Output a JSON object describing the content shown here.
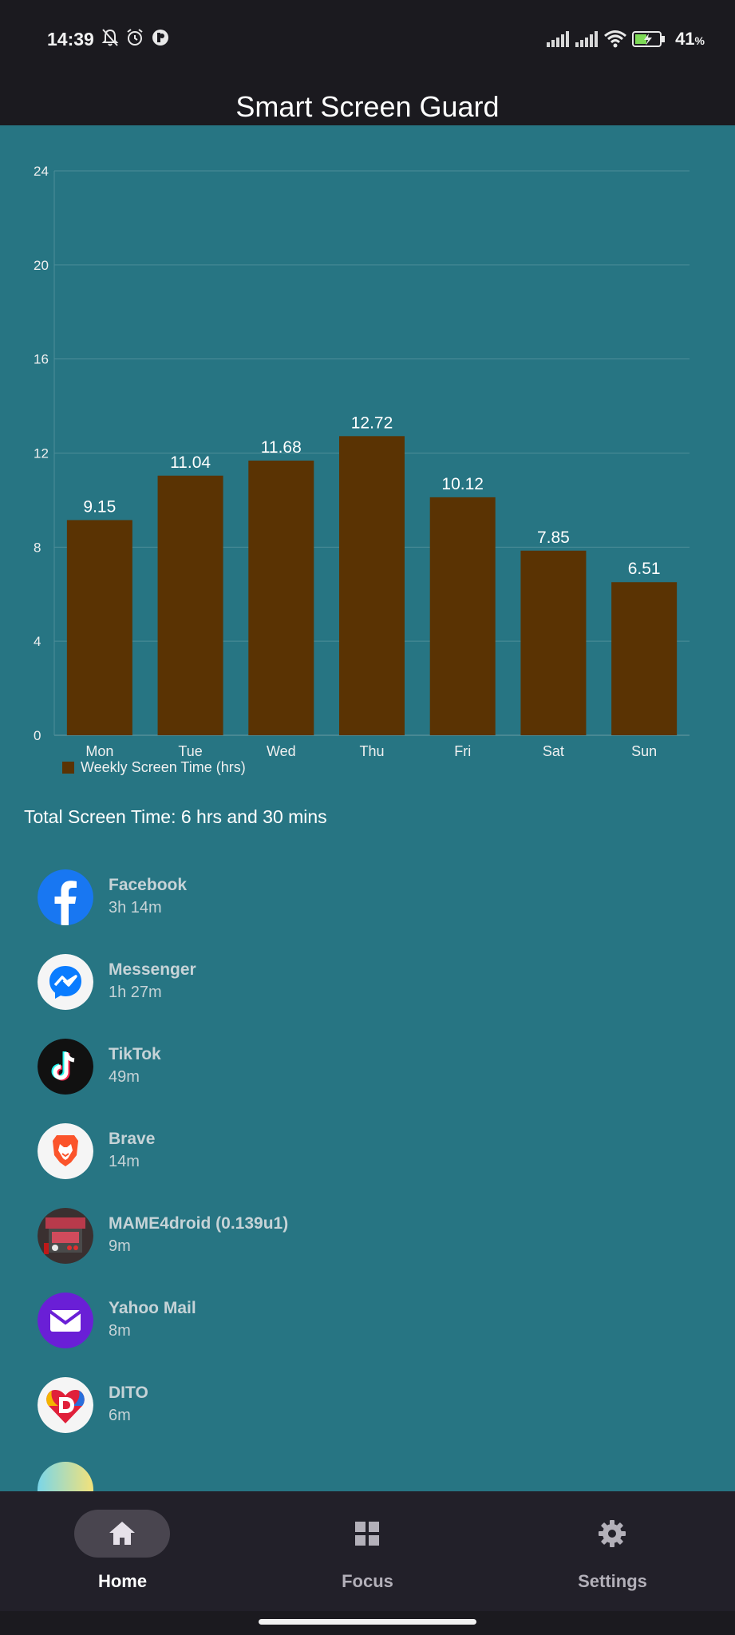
{
  "status_bar": {
    "time": "14:39",
    "battery_percent": "41",
    "battery_unit": "%",
    "left_icons": [
      "bell-off-icon",
      "alarm-icon",
      "app-notification-icon"
    ],
    "right_icons": [
      "signal-icon",
      "signal-icon",
      "wifi-icon",
      "battery-charging-icon"
    ]
  },
  "app_bar": {
    "title": "Smart Screen Guard"
  },
  "chart_data": {
    "type": "bar",
    "categories": [
      "Mon",
      "Tue",
      "Wed",
      "Thu",
      "Fri",
      "Sat",
      "Sun"
    ],
    "series": [
      {
        "name": "Weekly Screen Time (hrs)",
        "values": [
          9.15,
          11.04,
          11.68,
          12.72,
          10.12,
          7.85,
          6.51
        ],
        "color": "#5a3303"
      }
    ],
    "data_labels": [
      "9.15",
      "11.04",
      "11.68",
      "12.72",
      "10.12",
      "7.85",
      "6.51"
    ],
    "y_ticks": [
      0,
      4,
      8,
      12,
      16,
      20,
      24
    ],
    "ylim": [
      0,
      24
    ],
    "grid": true,
    "legend_position": "bottom-left"
  },
  "summary": {
    "total_label": "Total Screen Time: 6 hrs and 30 mins"
  },
  "apps": [
    {
      "name": "Facebook",
      "time": "3h 14m",
      "icon": "facebook-icon"
    },
    {
      "name": "Messenger",
      "time": "1h 27m",
      "icon": "messenger-icon"
    },
    {
      "name": "TikTok",
      "time": "49m",
      "icon": "tiktok-icon"
    },
    {
      "name": "Brave",
      "time": "14m",
      "icon": "brave-lion-icon"
    },
    {
      "name": "MAME4droid (0.139u1)",
      "time": "9m",
      "icon": "mame-arcade-icon"
    },
    {
      "name": "Yahoo Mail",
      "time": "8m",
      "icon": "yahoo-mail-envelope-icon"
    },
    {
      "name": "DITO",
      "time": "6m",
      "icon": "dito-icon"
    }
  ],
  "bottom_nav": {
    "items": [
      {
        "label": "Home",
        "icon": "home-icon",
        "active": true
      },
      {
        "label": "Focus",
        "icon": "grid-icon",
        "active": false
      },
      {
        "label": "Settings",
        "icon": "gear-icon",
        "active": false
      }
    ]
  },
  "colors": {
    "background": "#277583",
    "bar": "#5a3303",
    "topbar": "#1b1a1f",
    "bottom_nav": "#222029"
  }
}
